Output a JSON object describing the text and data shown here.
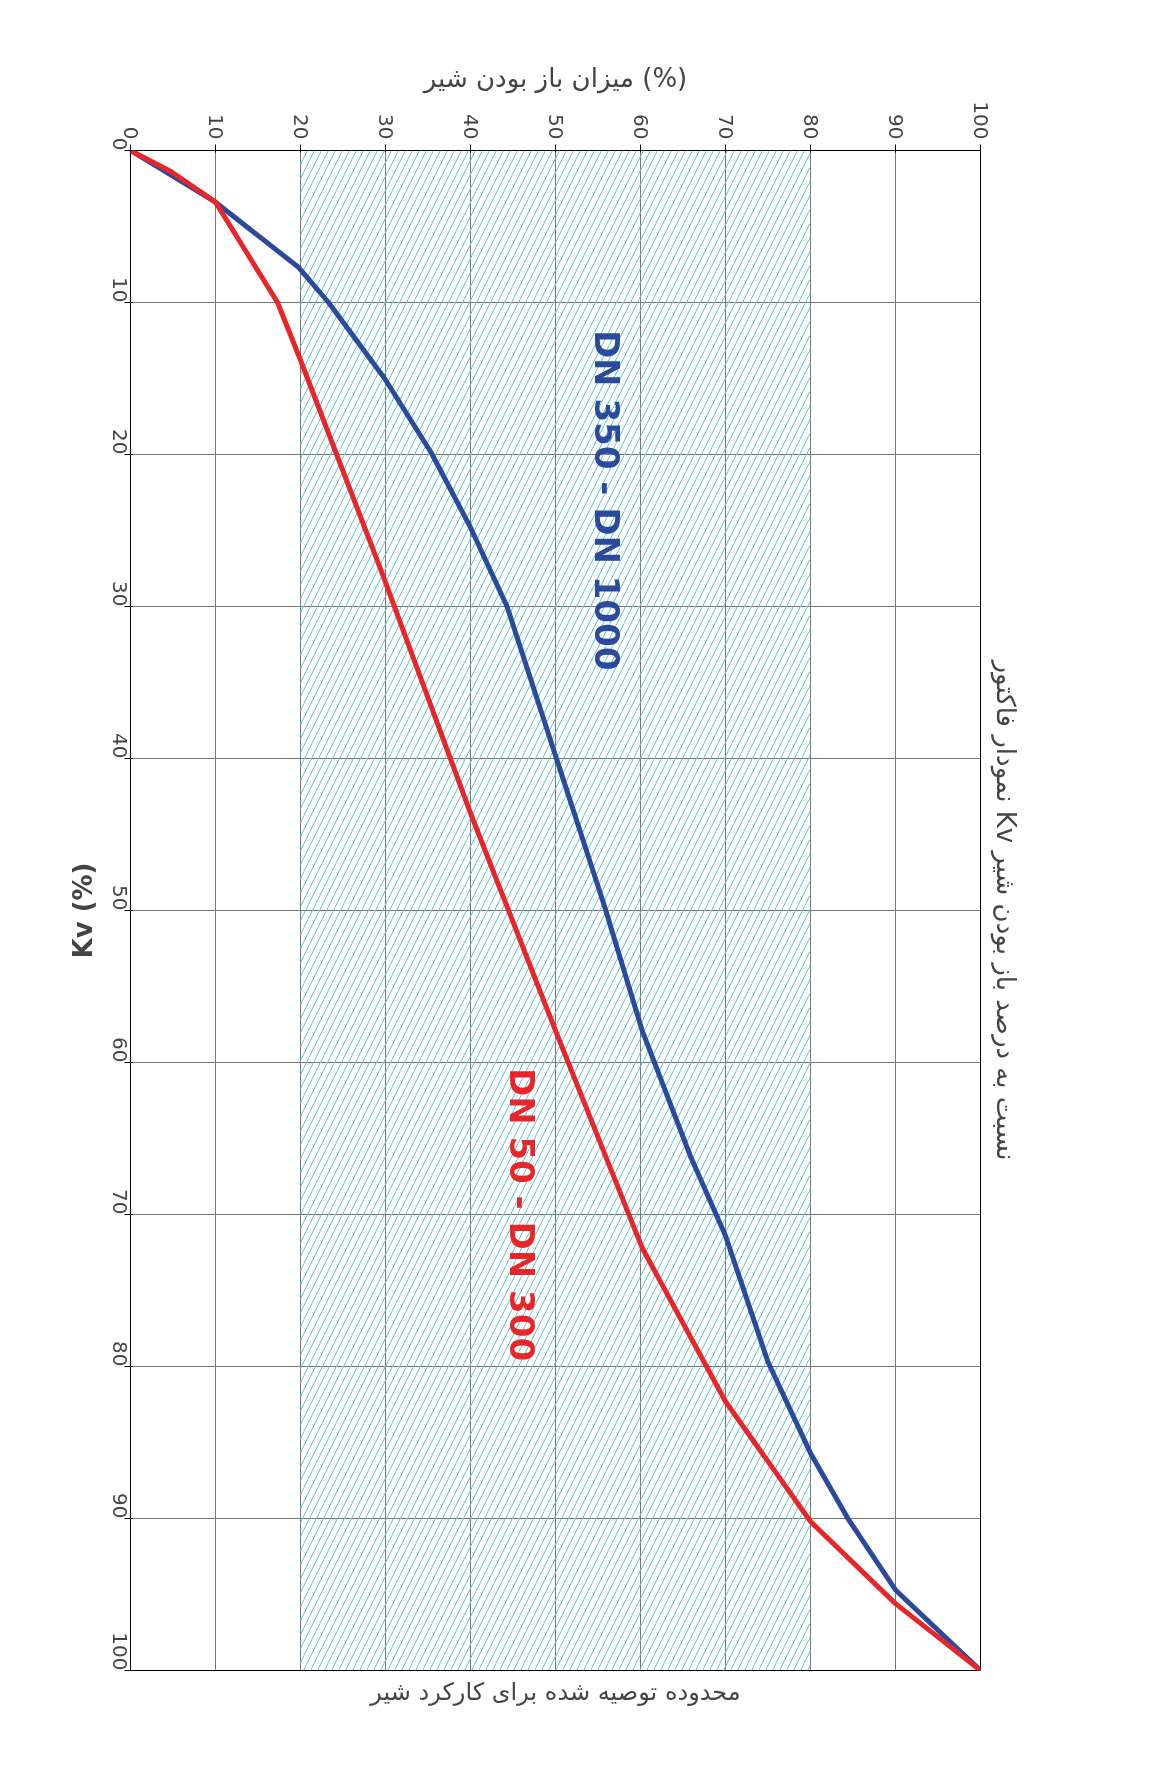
{
  "chart_data": {
    "type": "line",
    "title": "نمودار فاکتور Kv نسبت به درصد باز بودن شیر",
    "xlabel": "میزان باز بودن شیر (%)",
    "ylabel": "Kv (%)",
    "xlim": [
      0,
      100
    ],
    "ylim": [
      100,
      0
    ],
    "xticks": [
      0,
      10,
      20,
      30,
      40,
      50,
      60,
      70,
      80,
      90,
      100
    ],
    "yticks": [
      0,
      10,
      20,
      30,
      40,
      50,
      60,
      70,
      80,
      90,
      100
    ],
    "grid": true,
    "line_style": "solid",
    "marker": "none",
    "legend": false,
    "series": [
      {
        "name": "DN 350 - DN 1000",
        "color": "#2a4a9e",
        "x": [
          0,
          10,
          19.8,
          23.3,
          29.9,
          35.4,
          40,
          44.3,
          50,
          55.7,
          60.2,
          65.9,
          70,
          75,
          80,
          84.4,
          90,
          100
        ],
        "values": [
          0,
          3.4,
          7.7,
          10,
          15,
          19.9,
          24.8,
          30,
          39.8,
          49.6,
          57.9,
          66.2,
          71.4,
          79.7,
          85.7,
          90,
          94.7,
          100
        ]
      },
      {
        "name": "DN 50 - DN 300",
        "color": "#e8262a",
        "x": [
          0,
          4.8,
          10,
          17.3,
          19.8,
          29.6,
          40,
          50,
          60.2,
          70,
          80,
          90,
          100
        ],
        "values": [
          0,
          1.4,
          3.4,
          10,
          13.5,
          27.8,
          43.6,
          57.9,
          72.2,
          82.3,
          90.2,
          95.6,
          100
        ]
      }
    ],
    "bands": [
      {
        "axis": "x",
        "from": 20,
        "to": 80,
        "label": "محدوده توصیه شده برای کارکرد شیر",
        "color": "#5bc8d8"
      }
    ]
  }
}
